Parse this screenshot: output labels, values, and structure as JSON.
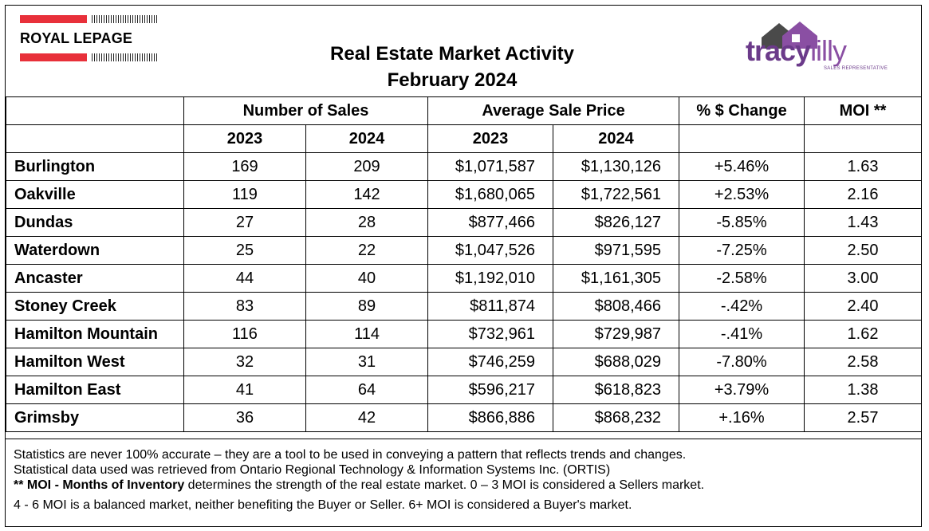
{
  "header": {
    "brand_name": "ROYAL LEPAGE",
    "title_line1": "Real Estate Market Activity",
    "title_line2": "February 2024",
    "agent_logo": {
      "part1": "tracy",
      "part2": "lilly",
      "tagline": "SALES REPRESENTATIVE"
    },
    "brand_colors": {
      "royal_lepage_red": "#e8303a",
      "agent_purple": "#6b3a8a"
    }
  },
  "table": {
    "group_headers": {
      "sales": "Number of Sales",
      "avg_price": "Average Sale Price",
      "change": "% $ Change",
      "moi": "MOI **"
    },
    "year_headers": {
      "sales_2023": "2023",
      "sales_2024": "2024",
      "price_2023": "2023",
      "price_2024": "2024"
    },
    "rows": [
      {
        "city": "Burlington",
        "sales_2023": "169",
        "sales_2024": "209",
        "price_2023": "$1,071,587",
        "price_2024": "$1,130,126",
        "change": "+5.46%",
        "moi": "1.63"
      },
      {
        "city": "Oakville",
        "sales_2023": "119",
        "sales_2024": "142",
        "price_2023": "$1,680,065",
        "price_2024": "$1,722,561",
        "change": "+2.53%",
        "moi": "2.16"
      },
      {
        "city": "Dundas",
        "sales_2023": "27",
        "sales_2024": "28",
        "price_2023": "$877,466",
        "price_2024": "$826,127",
        "change": "-5.85%",
        "moi": "1.43"
      },
      {
        "city": "Waterdown",
        "sales_2023": "25",
        "sales_2024": "22",
        "price_2023": "$1,047,526",
        "price_2024": "$971,595",
        "change": "-7.25%",
        "moi": "2.50"
      },
      {
        "city": "Ancaster",
        "sales_2023": "44",
        "sales_2024": "40",
        "price_2023": "$1,192,010",
        "price_2024": "$1,161,305",
        "change": "-2.58%",
        "moi": "3.00"
      },
      {
        "city": "Stoney Creek",
        "sales_2023": "83",
        "sales_2024": "89",
        "price_2023": "$811,874",
        "price_2024": "$808,466",
        "change": "-.42%",
        "moi": "2.40"
      },
      {
        "city": "Hamilton Mountain",
        "sales_2023": "116",
        "sales_2024": "114",
        "price_2023": "$732,961",
        "price_2024": "$729,987",
        "change": "-.41%",
        "moi": "1.62"
      },
      {
        "city": "Hamilton West",
        "sales_2023": "32",
        "sales_2024": "31",
        "price_2023": "$746,259",
        "price_2024": "$688,029",
        "change": "-7.80%",
        "moi": "2.58"
      },
      {
        "city": "Hamilton East",
        "sales_2023": "41",
        "sales_2024": "64",
        "price_2023": "$596,217",
        "price_2024": "$618,823",
        "change": "+3.79%",
        "moi": "1.38"
      },
      {
        "city": "Grimsby",
        "sales_2023": "36",
        "sales_2024": "42",
        "price_2023": "$866,886",
        "price_2024": "$868,232",
        "change": "+.16%",
        "moi": "2.57"
      }
    ]
  },
  "notes": {
    "line1": "Statistics are never 100% accurate – they are a tool to be used in conveying a pattern that reflects trends and changes.",
    "line2": "Statistical data used was retrieved from Ontario Regional Technology & Information Systems Inc. (ORTIS)",
    "line3_bold": "** MOI - Months of Inventory",
    "line3_rest": " determines the strength of the real estate market. 0 – 3 MOI is considered a Sellers market.",
    "line4": "4 - 6 MOI is a balanced market, neither benefiting the Buyer or Seller. 6+ MOI is considered a Buyer's market."
  }
}
